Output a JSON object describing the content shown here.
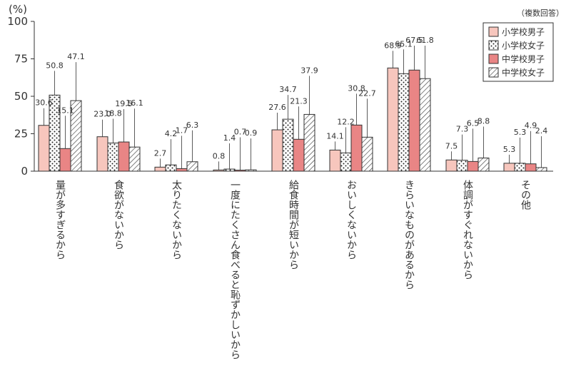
{
  "chart_data": {
    "type": "bar",
    "unit_label": "(%)",
    "note": "（複数回答）",
    "ylim": [
      0,
      100
    ],
    "yticks": [
      0,
      25,
      50,
      75,
      100
    ],
    "grid": false,
    "legend_position": "top-right",
    "categories": [
      "量が多すぎるから",
      "食欲がないから",
      "太りたくないから",
      "一度にたくさん食べると恥ずかしいから",
      "給食時間が短いから",
      "おいしくないから",
      "きらいなものがあるから",
      "体調がすぐれないから",
      "その他"
    ],
    "series": [
      {
        "name": "小学校男子",
        "pattern": "solid-light",
        "color": "#f7c6bd",
        "values": [
          30.6,
          23.0,
          2.7,
          0.8,
          27.6,
          14.1,
          68.9,
          7.5,
          5.3
        ],
        "labels": [
          "30.6",
          "23.0",
          "2.7",
          "0.8",
          "27.6",
          "14.1",
          "68.9",
          "7.5",
          "5.3"
        ]
      },
      {
        "name": "小学校女子",
        "pattern": "dots",
        "color": "#ffffff",
        "values": [
          50.8,
          18.8,
          4.2,
          1.4,
          34.7,
          12.2,
          65.1,
          7.3,
          5.3
        ],
        "labels": [
          "50.8",
          "18.8",
          "4.2",
          "1.4",
          "34.7",
          "12.2",
          "65.1",
          "7.3",
          "5.3"
        ]
      },
      {
        "name": "中学校男子",
        "pattern": "solid-dark",
        "color": "#e98585",
        "values": [
          15.1,
          19.5,
          1.7,
          0.7,
          21.3,
          30.8,
          67.5,
          6.5,
          4.9
        ],
        "labels": [
          "15.1",
          "19.5",
          "1.7",
          "0.7",
          "21.3",
          "30.8",
          "67.5",
          "6.5",
          "4.9"
        ]
      },
      {
        "name": "中学校女子",
        "pattern": "hatch",
        "color": "#ffffff",
        "values": [
          47.1,
          16.1,
          6.3,
          0.9,
          37.9,
          22.7,
          61.8,
          8.8,
          2.4
        ],
        "labels": [
          "47.1",
          "16.1",
          "6.3",
          "0.9",
          "37.9",
          "22.7",
          "61.8",
          "8.8",
          "2.4"
        ]
      }
    ]
  }
}
